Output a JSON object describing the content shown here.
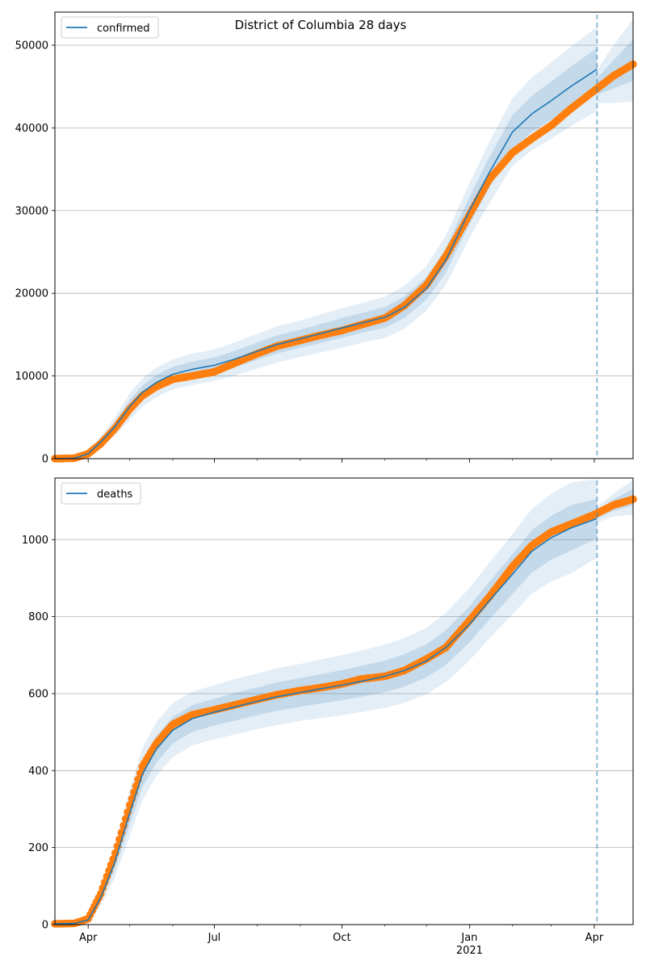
{
  "figure": {
    "title": "District of Columbia 28 days"
  },
  "chart_data": [
    {
      "type": "line",
      "title": "District of Columbia 28 days",
      "legend": {
        "label": "confirmed",
        "placement": "top-left"
      },
      "xlim": [
        "2020-03-08",
        "2021-04-29"
      ],
      "ylim": [
        0,
        54000
      ],
      "yticks": [
        0,
        10000,
        20000,
        30000,
        40000,
        50000
      ],
      "xticks": [
        {
          "date": "2020-04-01",
          "label": "Apr",
          "sublabel": ""
        },
        {
          "date": "2020-07-01",
          "label": "Jul",
          "sublabel": ""
        },
        {
          "date": "2020-10-01",
          "label": "Oct",
          "sublabel": ""
        },
        {
          "date": "2021-01-01",
          "label": "Jan",
          "sublabel": "2021"
        },
        {
          "date": "2021-04-01",
          "label": "Apr",
          "sublabel": ""
        }
      ],
      "grid": "y",
      "forecast_start": "2021-04-03",
      "colors": {
        "model": "#1f77b4",
        "observed": "#ff7f0e",
        "band": "#1f77b4"
      },
      "model": {
        "dates": [
          "2020-03-08",
          "2020-03-22",
          "2020-04-01",
          "2020-04-10",
          "2020-04-20",
          "2020-05-01",
          "2020-05-10",
          "2020-05-20",
          "2020-06-01",
          "2020-06-15",
          "2020-07-01",
          "2020-07-15",
          "2020-08-01",
          "2020-08-15",
          "2020-09-01",
          "2020-09-15",
          "2020-10-01",
          "2020-10-15",
          "2020-11-01",
          "2020-11-15",
          "2020-12-01",
          "2020-12-15",
          "2021-01-01",
          "2021-01-15",
          "2021-02-01",
          "2021-02-15",
          "2021-03-01",
          "2021-03-15",
          "2021-04-03"
        ],
        "values": [
          0,
          50,
          600,
          2000,
          3800,
          6300,
          8000,
          9200,
          10200,
          10800,
          11300,
          12000,
          13000,
          13800,
          14500,
          15100,
          15800,
          16400,
          17100,
          18300,
          20600,
          24000,
          30000,
          34500,
          39500,
          41700,
          43300,
          45000,
          47100
        ],
        "band_outer_half_width": [
          0,
          50,
          300,
          700,
          1100,
          1600,
          1700,
          1800,
          1800,
          1900,
          1900,
          2000,
          2100,
          2200,
          2200,
          2300,
          2400,
          2400,
          2500,
          2600,
          2700,
          3000,
          3300,
          3700,
          4100,
          4400,
          4600,
          4800,
          5100
        ],
        "band_inner_half_width": [
          0,
          25,
          150,
          350,
          550,
          800,
          850,
          900,
          900,
          950,
          950,
          1000,
          1050,
          1100,
          1100,
          1150,
          1200,
          1200,
          1250,
          1300,
          1350,
          1500,
          1650,
          1850,
          2050,
          2200,
          2300,
          2400,
          2550
        ]
      },
      "observed": {
        "dates": [
          "2020-03-08",
          "2020-03-22",
          "2020-04-01",
          "2020-04-10",
          "2020-04-20",
          "2020-05-01",
          "2020-05-10",
          "2020-05-20",
          "2020-06-01",
          "2020-06-15",
          "2020-07-01",
          "2020-07-15",
          "2020-08-01",
          "2020-08-15",
          "2020-09-01",
          "2020-09-15",
          "2020-10-01",
          "2020-10-15",
          "2020-11-01",
          "2020-11-15",
          "2020-12-01",
          "2020-12-15",
          "2021-01-01",
          "2021-01-15",
          "2021-02-01",
          "2021-02-15",
          "2021-03-01",
          "2021-03-15",
          "2021-04-01",
          "2021-04-15",
          "2021-04-29"
        ],
        "values": [
          0,
          50,
          600,
          1800,
          3600,
          6000,
          7600,
          8700,
          9600,
          10000,
          10500,
          11500,
          12700,
          13600,
          14300,
          14900,
          15500,
          16200,
          17000,
          18500,
          21000,
          24500,
          29500,
          33700,
          37000,
          38700,
          40300,
          42300,
          44500,
          46300,
          47700
        ]
      },
      "projection": {
        "dates": [
          "2021-04-03",
          "2021-04-15",
          "2021-04-29"
        ],
        "values": [
          45000,
          46500,
          48200
        ],
        "band_outer_half_width": [
          2000,
          3500,
          5000
        ],
        "band_inner_half_width": [
          1000,
          1700,
          2500
        ]
      }
    },
    {
      "type": "line",
      "legend": {
        "label": "deaths",
        "placement": "top-left"
      },
      "xlim": [
        "2020-03-08",
        "2021-04-29"
      ],
      "ylim": [
        0,
        1160
      ],
      "yticks": [
        0,
        200,
        400,
        600,
        800,
        1000
      ],
      "xticks": [
        {
          "date": "2020-04-01",
          "label": "Apr",
          "sublabel": ""
        },
        {
          "date": "2020-07-01",
          "label": "Jul",
          "sublabel": ""
        },
        {
          "date": "2020-10-01",
          "label": "Oct",
          "sublabel": ""
        },
        {
          "date": "2021-01-01",
          "label": "Jan",
          "sublabel": "2021"
        },
        {
          "date": "2021-04-01",
          "label": "Apr",
          "sublabel": ""
        }
      ],
      "grid": "y",
      "forecast_start": "2021-04-03",
      "colors": {
        "model": "#1f77b4",
        "observed": "#ff7f0e",
        "band": "#1f77b4"
      },
      "model": {
        "dates": [
          "2020-03-08",
          "2020-03-22",
          "2020-04-01",
          "2020-04-10",
          "2020-04-20",
          "2020-05-01",
          "2020-05-10",
          "2020-05-20",
          "2020-06-01",
          "2020-06-15",
          "2020-07-01",
          "2020-07-15",
          "2020-08-01",
          "2020-08-15",
          "2020-09-01",
          "2020-09-15",
          "2020-10-01",
          "2020-10-15",
          "2020-11-01",
          "2020-11-15",
          "2020-12-01",
          "2020-12-15",
          "2021-01-01",
          "2021-01-15",
          "2021-02-01",
          "2021-02-15",
          "2021-03-01",
          "2021-03-15",
          "2021-04-03"
        ],
        "values": [
          2,
          3,
          12,
          70,
          160,
          290,
          390,
          455,
          505,
          535,
          552,
          565,
          580,
          592,
          603,
          612,
          622,
          632,
          645,
          660,
          685,
          720,
          780,
          840,
          910,
          970,
          1005,
          1030,
          1055
        ],
        "band_outer_half_width": [
          1,
          3,
          8,
          20,
          40,
          60,
          68,
          70,
          70,
          70,
          70,
          72,
          72,
          74,
          74,
          76,
          78,
          80,
          82,
          84,
          86,
          90,
          94,
          98,
          104,
          110,
          114,
          118,
          102
        ],
        "band_inner_half_width": [
          0,
          1,
          4,
          10,
          20,
          30,
          34,
          35,
          35,
          35,
          35,
          36,
          36,
          37,
          37,
          38,
          39,
          40,
          41,
          42,
          43,
          45,
          47,
          49,
          52,
          55,
          57,
          59,
          51
        ]
      },
      "observed": {
        "dates": [
          "2020-03-08",
          "2020-03-22",
          "2020-04-01",
          "2020-04-10",
          "2020-04-20",
          "2020-05-01",
          "2020-05-10",
          "2020-05-20",
          "2020-06-01",
          "2020-06-15",
          "2020-07-01",
          "2020-07-15",
          "2020-08-01",
          "2020-08-15",
          "2020-09-01",
          "2020-09-15",
          "2020-10-01",
          "2020-10-15",
          "2020-11-01",
          "2020-11-15",
          "2020-12-01",
          "2020-12-15",
          "2021-01-01",
          "2021-01-15",
          "2021-02-01",
          "2021-02-15",
          "2021-03-01",
          "2021-03-15",
          "2021-04-01",
          "2021-04-15",
          "2021-04-29"
        ],
        "values": [
          2,
          3,
          15,
          80,
          180,
          310,
          410,
          470,
          520,
          545,
          558,
          570,
          585,
          597,
          608,
          615,
          625,
          638,
          645,
          660,
          690,
          720,
          790,
          850,
          930,
          985,
          1020,
          1040,
          1065,
          1090,
          1105
        ]
      },
      "projection": {
        "dates": [
          "2021-04-03",
          "2021-04-15",
          "2021-04-29"
        ],
        "values": [
          1065,
          1090,
          1110
        ],
        "band_outer_half_width": [
          20,
          30,
          45
        ],
        "band_inner_half_width": [
          10,
          15,
          22
        ]
      }
    }
  ]
}
